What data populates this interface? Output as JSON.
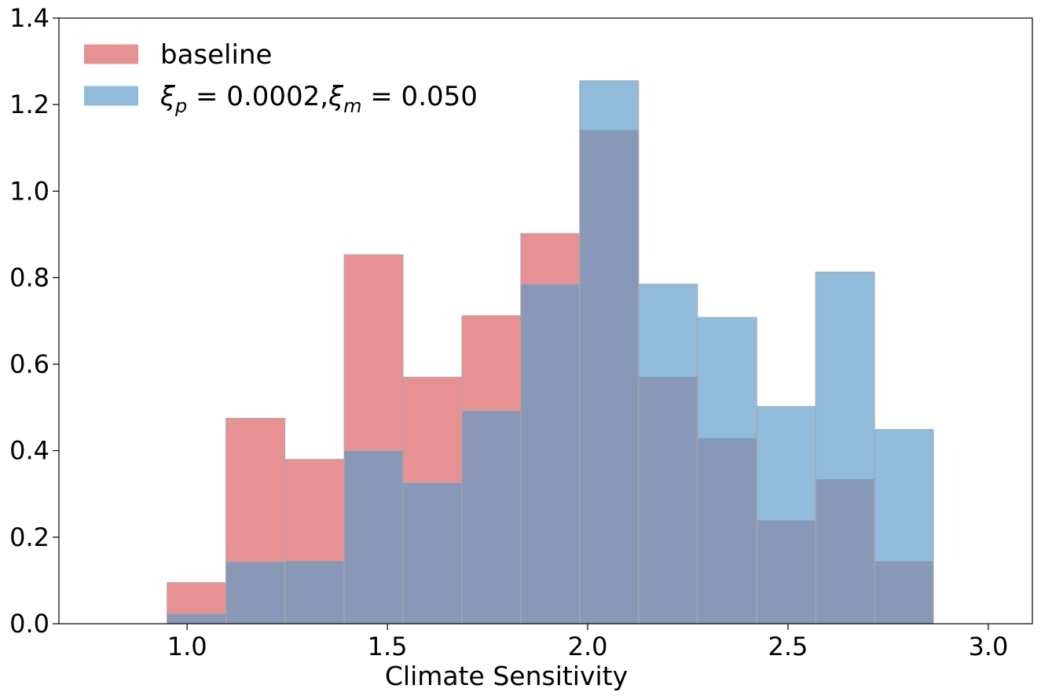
{
  "chart_data": {
    "type": "bar",
    "histogram": true,
    "xlabel": "Climate Sensitivity",
    "ylabel": "",
    "title": "",
    "xlim": [
      0.68,
      3.11
    ],
    "ylim": [
      0.0,
      1.4
    ],
    "xticks": [
      "1.0",
      "1.5",
      "2.0",
      "2.5",
      "3.0"
    ],
    "xtick_values": [
      1.0,
      1.5,
      2.0,
      2.5,
      3.0
    ],
    "yticks": [
      "0.0",
      "0.2",
      "0.4",
      "0.6",
      "0.8",
      "1.0",
      "1.2",
      "1.4"
    ],
    "ytick_values": [
      0.0,
      0.2,
      0.4,
      0.6,
      0.8,
      1.0,
      1.2,
      1.4
    ],
    "bin_edges": [
      0.95,
      1.097,
      1.244,
      1.392,
      1.539,
      1.686,
      1.833,
      1.98,
      2.127,
      2.274,
      2.422,
      2.569,
      2.716,
      2.863
    ],
    "legend_position": "upper-left",
    "grid": false,
    "series": [
      {
        "name": "baseline",
        "color": "#e06c6f",
        "opacity": 0.75,
        "values": [
          0.095,
          0.475,
          0.38,
          0.853,
          0.57,
          0.712,
          0.902,
          1.14,
          0.57,
          0.428,
          0.238,
          0.333,
          0.143
        ]
      },
      {
        "name_parts": [
          "ξ",
          "p",
          " = 0.0002,",
          "ξ",
          "m",
          " = 0.050"
        ],
        "color": "#5b9bc9",
        "opacity": 0.68,
        "values": [
          0.023,
          0.143,
          0.145,
          0.4,
          0.326,
          0.492,
          0.785,
          1.255,
          0.785,
          0.708,
          0.502,
          0.813,
          0.449
        ]
      }
    ],
    "overlap_color": "#8487a1",
    "edge_color": "#a8a8a8"
  }
}
